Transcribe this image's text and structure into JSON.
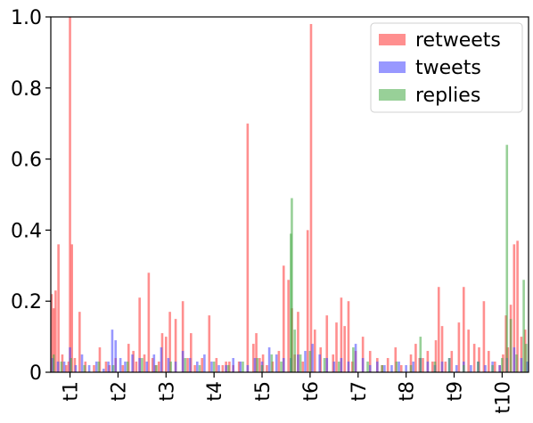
{
  "chart_data": {
    "type": "bar",
    "title": "",
    "xlabel": "",
    "ylabel": "",
    "ylim": [
      0,
      1.0
    ],
    "xlim": [
      0.6,
      10.55
    ],
    "grid": false,
    "legend_position": "top-right",
    "yticks": [
      {
        "value": 0,
        "label": "0"
      },
      {
        "value": 0.2,
        "label": "0.2"
      },
      {
        "value": 0.4,
        "label": "0.4"
      },
      {
        "value": 0.6,
        "label": "0.6"
      },
      {
        "value": 0.8,
        "label": "0.8"
      },
      {
        "value": 1.0,
        "label": "1.0"
      }
    ],
    "xticks": [
      {
        "value": 1,
        "label": "t1"
      },
      {
        "value": 2,
        "label": "t2"
      },
      {
        "value": 3,
        "label": "t3"
      },
      {
        "value": 4,
        "label": "t4"
      },
      {
        "value": 5,
        "label": "t5"
      },
      {
        "value": 6,
        "label": "t6"
      },
      {
        "value": 7,
        "label": "t7"
      },
      {
        "value": 8,
        "label": "t8"
      },
      {
        "value": 9,
        "label": "t9"
      },
      {
        "value": 10,
        "label": "t10"
      }
    ],
    "series": [
      {
        "name": "retweets",
        "color": "#ff4444",
        "x": [
          0.62,
          0.66,
          0.7,
          0.76,
          0.84,
          0.92,
          0.97,
          1.0,
          1.04,
          1.1,
          1.2,
          1.32,
          1.5,
          1.62,
          1.75,
          1.82,
          1.95,
          2.1,
          2.22,
          2.32,
          2.38,
          2.45,
          2.55,
          2.64,
          2.72,
          2.78,
          2.85,
          2.92,
          3.0,
          3.08,
          3.2,
          3.35,
          3.45,
          3.52,
          3.6,
          3.75,
          3.9,
          4.05,
          4.18,
          4.25,
          4.32,
          4.4,
          4.52,
          4.7,
          4.82,
          4.88,
          4.95,
          5.02,
          5.1,
          5.22,
          5.35,
          5.45,
          5.55,
          5.62,
          5.68,
          5.75,
          5.85,
          5.95,
          6.02,
          6.1,
          6.22,
          6.35,
          6.48,
          6.55,
          6.65,
          6.72,
          6.8,
          6.88,
          6.95,
          7.1,
          7.25,
          7.4,
          7.5,
          7.62,
          7.78,
          7.9,
          8.1,
          8.2,
          8.28,
          8.35,
          8.45,
          8.55,
          8.62,
          8.68,
          8.75,
          8.82,
          8.95,
          9.1,
          9.2,
          9.3,
          9.42,
          9.52,
          9.62,
          9.72,
          9.85,
          9.95,
          10.02,
          10.08,
          10.12,
          10.18,
          10.25,
          10.32,
          10.4,
          10.48
        ],
        "values": [
          0.22,
          0.18,
          0.23,
          0.36,
          0.05,
          0.02,
          0.03,
          1.0,
          0.36,
          0.04,
          0.17,
          0.03,
          0.02,
          0.07,
          0.03,
          0.02,
          0.04,
          0.02,
          0.08,
          0.06,
          0.03,
          0.21,
          0.05,
          0.28,
          0.04,
          0.02,
          0.03,
          0.11,
          0.1,
          0.17,
          0.15,
          0.2,
          0.04,
          0.11,
          0.02,
          0.04,
          0.16,
          0.04,
          0.02,
          0.03,
          0.03,
          0.02,
          0.03,
          0.7,
          0.08,
          0.11,
          0.04,
          0.05,
          0.02,
          0.03,
          0.06,
          0.3,
          0.26,
          0.18,
          0.05,
          0.17,
          0.03,
          0.4,
          0.98,
          0.12,
          0.07,
          0.16,
          0.05,
          0.14,
          0.21,
          0.13,
          0.2,
          0.03,
          0.06,
          0.1,
          0.06,
          0.04,
          0.02,
          0.04,
          0.07,
          0.02,
          0.05,
          0.08,
          0.04,
          0.04,
          0.06,
          0.03,
          0.09,
          0.24,
          0.13,
          0.03,
          0.06,
          0.14,
          0.24,
          0.12,
          0.08,
          0.07,
          0.2,
          0.06,
          0.03,
          0.02,
          0.05,
          0.16,
          0.07,
          0.19,
          0.36,
          0.37,
          0.1,
          0.12
        ],
        "opacity": 0.6
      },
      {
        "name": "tweets",
        "color": "#4444ff",
        "x": [
          0.64,
          0.75,
          0.88,
          1.0,
          1.12,
          1.25,
          1.4,
          1.55,
          1.7,
          1.8,
          1.88,
          1.95,
          2.05,
          2.15,
          2.3,
          2.45,
          2.6,
          2.75,
          2.9,
          3.05,
          3.2,
          3.35,
          3.5,
          3.65,
          3.8,
          3.95,
          4.1,
          4.25,
          4.4,
          4.55,
          4.7,
          4.85,
          5.0,
          5.15,
          5.3,
          5.45,
          5.6,
          5.75,
          5.9,
          6.05,
          6.2,
          6.35,
          6.5,
          6.65,
          6.8,
          6.95,
          7.1,
          7.25,
          7.4,
          7.55,
          7.7,
          7.85,
          8.0,
          8.15,
          8.3,
          8.45,
          8.6,
          8.75,
          8.9,
          9.05,
          9.2,
          9.35,
          9.5,
          9.65,
          9.8,
          9.95,
          10.1,
          10.25,
          10.4,
          10.52
        ],
        "values": [
          0.04,
          0.03,
          0.03,
          0.07,
          0.02,
          0.05,
          0.02,
          0.03,
          0.01,
          0.03,
          0.12,
          0.09,
          0.04,
          0.03,
          0.05,
          0.04,
          0.03,
          0.05,
          0.07,
          0.04,
          0.03,
          0.06,
          0.04,
          0.03,
          0.05,
          0.03,
          0.02,
          0.02,
          0.04,
          0.03,
          0.02,
          0.04,
          0.03,
          0.07,
          0.05,
          0.04,
          0.04,
          0.05,
          0.06,
          0.08,
          0.05,
          0.04,
          0.03,
          0.04,
          0.03,
          0.08,
          0.04,
          0.02,
          0.03,
          0.02,
          0.02,
          0.03,
          0.02,
          0.03,
          0.04,
          0.03,
          0.02,
          0.03,
          0.04,
          0.02,
          0.03,
          0.02,
          0.03,
          0.02,
          0.03,
          0.02,
          0.04,
          0.07,
          0.04,
          0.03
        ],
        "opacity": 0.55
      },
      {
        "name": "replies",
        "color": "#44aa44",
        "x": [
          0.66,
          0.82,
          1.02,
          1.3,
          1.6,
          1.9,
          2.2,
          2.5,
          2.8,
          3.1,
          3.4,
          3.7,
          4.0,
          4.3,
          4.6,
          4.9,
          5.0,
          5.2,
          5.4,
          5.6,
          5.62,
          5.68,
          5.8,
          6.0,
          6.3,
          6.6,
          6.9,
          7.2,
          7.5,
          7.8,
          8.1,
          8.3,
          8.6,
          8.9,
          9.2,
          9.5,
          9.8,
          10.0,
          10.1,
          10.18,
          10.3,
          10.45,
          10.5
        ],
        "values": [
          0.05,
          0.03,
          0.04,
          0.02,
          0.03,
          0.02,
          0.03,
          0.04,
          0.02,
          0.03,
          0.04,
          0.02,
          0.03,
          0.02,
          0.03,
          0.04,
          0.02,
          0.05,
          0.03,
          0.39,
          0.49,
          0.12,
          0.05,
          0.06,
          0.04,
          0.03,
          0.07,
          0.03,
          0.02,
          0.03,
          0.02,
          0.1,
          0.03,
          0.04,
          0.02,
          0.03,
          0.02,
          0.04,
          0.64,
          0.15,
          0.05,
          0.26,
          0.08
        ],
        "opacity": 0.55
      }
    ]
  }
}
